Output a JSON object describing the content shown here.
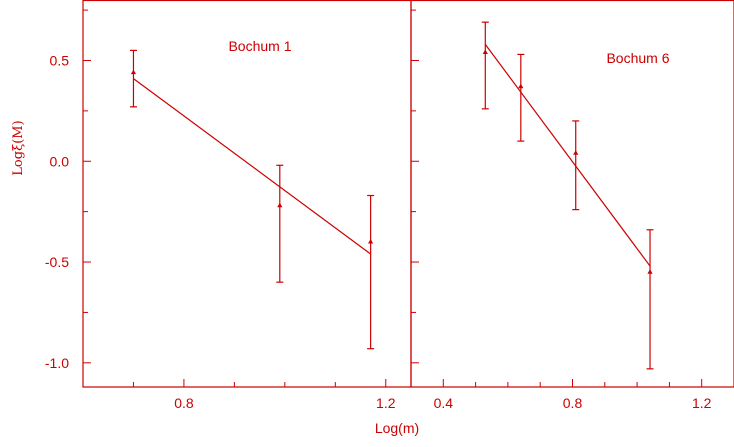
{
  "colors": {
    "ink": "#cc0000"
  },
  "xlabel": "Log(m)",
  "ylabel": "Logξ(M)",
  "chart_data": [
    {
      "type": "scatter",
      "title": "Bochum 1",
      "x_ticks": [
        0.8,
        1.2
      ],
      "x_tick_labels": [
        "0.8",
        "1.2"
      ],
      "xlim": [
        0.6,
        1.25
      ],
      "ylim": [
        -1.12,
        0.8
      ],
      "y_ticks": [
        0.5,
        0.0,
        -0.5,
        -1.0
      ],
      "y_tick_labels": [
        "0.5",
        "0.0",
        "-0.5",
        "-1.0"
      ],
      "points": [
        {
          "x": 0.7,
          "y": 0.44,
          "err_low": 0.17,
          "err_high": 0.11
        },
        {
          "x": 0.99,
          "y": -0.22,
          "err_low": 0.38,
          "err_high": 0.2
        },
        {
          "x": 1.17,
          "y": -0.4,
          "err_low": 0.53,
          "err_high": 0.23
        }
      ],
      "fit_line": [
        {
          "x": 0.7,
          "y": 0.41
        },
        {
          "x": 1.17,
          "y": -0.46
        }
      ]
    },
    {
      "type": "scatter",
      "title": "Bochum 6",
      "x_ticks": [
        0.4,
        0.8,
        1.2
      ],
      "x_tick_labels": [
        "0.4",
        "0.8",
        "1.2"
      ],
      "xlim": [
        0.3,
        1.3
      ],
      "ylim": [
        -1.12,
        0.8
      ],
      "y_ticks": [
        0.5,
        0.0,
        -0.5,
        -1.0
      ],
      "points": [
        {
          "x": 0.53,
          "y": 0.54,
          "err_low": 0.28,
          "err_high": 0.15
        },
        {
          "x": 0.64,
          "y": 0.37,
          "err_low": 0.27,
          "err_high": 0.16
        },
        {
          "x": 0.81,
          "y": 0.04,
          "err_low": 0.28,
          "err_high": 0.16
        },
        {
          "x": 1.04,
          "y": -0.55,
          "err_low": 0.48,
          "err_high": 0.21
        }
      ],
      "fit_line": [
        {
          "x": 0.53,
          "y": 0.58
        },
        {
          "x": 1.04,
          "y": -0.52
        }
      ]
    }
  ]
}
